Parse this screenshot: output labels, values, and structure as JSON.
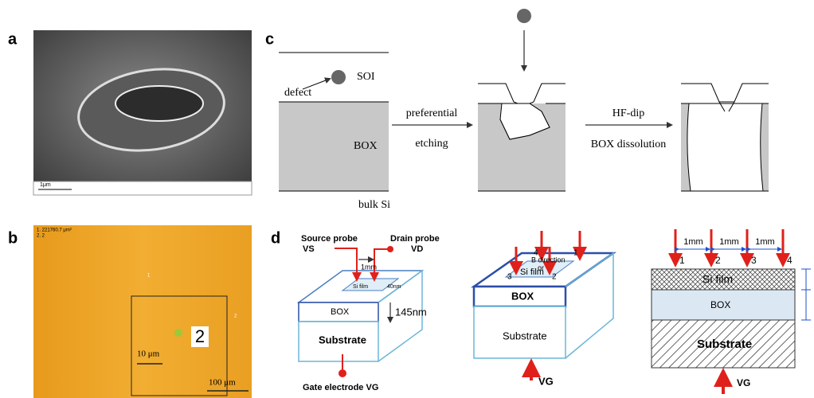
{
  "panels": {
    "a": {
      "label": "a",
      "scale_bar": "1μm"
    },
    "b": {
      "label": "b",
      "header": [
        "1. 221760.7 μm²",
        "2. 2"
      ],
      "marker_1": "1",
      "marker_2": "2",
      "box_label": "2",
      "scale_small": "10 μm",
      "scale_large": "100 μm"
    },
    "c": {
      "label": "c",
      "defect": "defect",
      "soi": "SOI",
      "box": "BOX",
      "bulk": "bulk Si",
      "step1": [
        "preferential",
        "etching"
      ],
      "step2": [
        "HF-dip",
        "BOX dissolution"
      ]
    },
    "d": {
      "label": "d",
      "left": {
        "source": "Source probe",
        "drain": "Drain probe",
        "vs": "VS",
        "vd": "VD",
        "gap": "1mm",
        "film": "Si film",
        "film_t": "40nm",
        "box": "BOX",
        "box_t": "145nm",
        "substrate": "Substrate",
        "gate": "Gate electrode VG"
      },
      "middle": {
        "probes": [
          "4",
          "1",
          "3",
          "2"
        ],
        "direction": "B direction",
        "or": "or",
        "film": "Si film",
        "box": "BOX",
        "substrate": "Substrate",
        "vg": "VG"
      },
      "right": {
        "gaps": [
          "1mm",
          "1mm",
          "1mm"
        ],
        "probes": [
          "1",
          "2",
          "3",
          "4"
        ],
        "film": "Si film",
        "box": "BOX",
        "substrate": "Substrate",
        "vg": "VG"
      }
    }
  }
}
